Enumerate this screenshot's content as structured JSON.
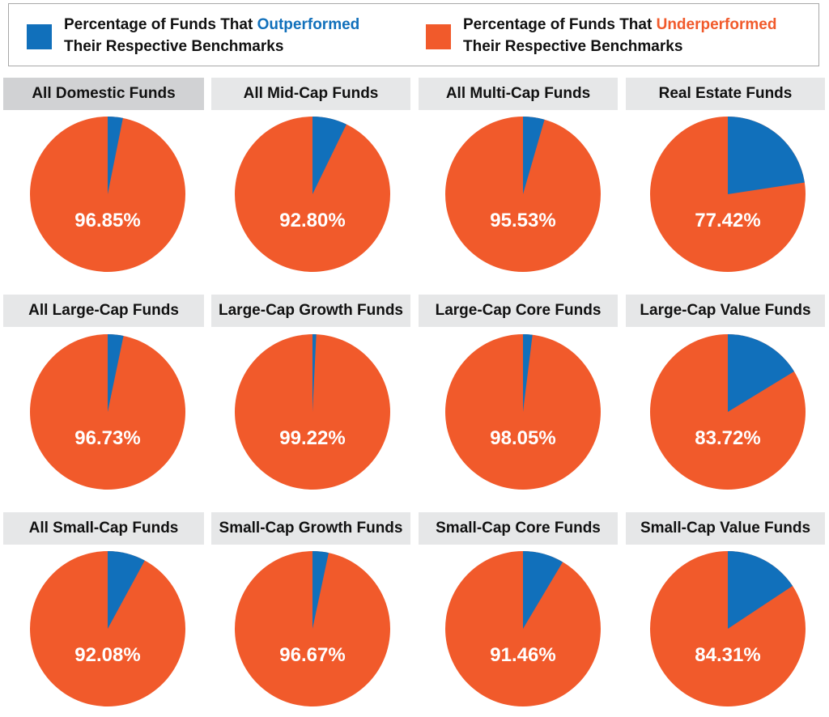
{
  "chart_data": {
    "type": "pie",
    "legend": {
      "placement": "top",
      "items": [
        {
          "prefix": "Percentage of Funds That ",
          "highlight": "Outperformed",
          "line2": "Their Respective Benchmarks",
          "color": "#1170bb"
        },
        {
          "prefix": "Percentage of Funds That ",
          "highlight": "Underperformed",
          "line2": "Their Respective Benchmarks",
          "color": "#f15a2b"
        }
      ]
    },
    "colors": {
      "outperformed": "#1170bb",
      "underperformed": "#f15a2b"
    },
    "charts": [
      {
        "title": "All Domestic Funds",
        "underperformed": 96.85,
        "label": "96.85%"
      },
      {
        "title": "All Mid-Cap Funds",
        "underperformed": 92.8,
        "label": "92.80%"
      },
      {
        "title": "All Multi-Cap Funds",
        "underperformed": 95.53,
        "label": "95.53%"
      },
      {
        "title": "Real Estate Funds",
        "underperformed": 77.42,
        "label": "77.42%"
      },
      {
        "title": "All Large-Cap Funds",
        "underperformed": 96.73,
        "label": "96.73%"
      },
      {
        "title": "Large-Cap Growth Funds",
        "underperformed": 99.22,
        "label": "99.22%"
      },
      {
        "title": "Large-Cap Core Funds",
        "underperformed": 98.05,
        "label": "98.05%"
      },
      {
        "title": "Large-Cap Value Funds",
        "underperformed": 83.72,
        "label": "83.72%"
      },
      {
        "title": "All Small-Cap Funds",
        "underperformed": 92.08,
        "label": "92.08%"
      },
      {
        "title": "Small-Cap Growth Funds",
        "underperformed": 96.67,
        "label": "96.67%"
      },
      {
        "title": "Small-Cap Core Funds",
        "underperformed": 91.46,
        "label": "91.46%"
      },
      {
        "title": "Small-Cap Value Funds",
        "underperformed": 84.31,
        "label": "84.31%"
      }
    ]
  }
}
